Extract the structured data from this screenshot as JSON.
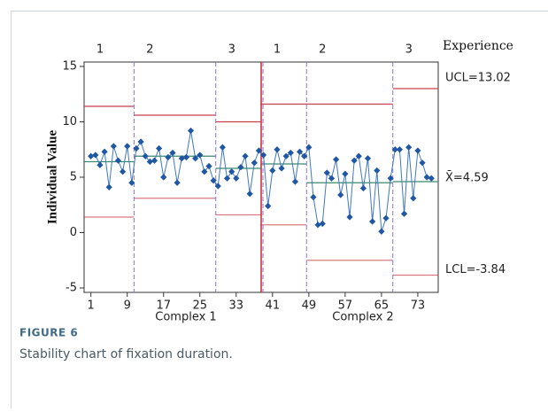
{
  "chart_data": {
    "type": "line",
    "figure_label": "FIGURE 6",
    "caption": "Stability chart of fixation duration.",
    "ylabel": "Individual Value",
    "top_label": "Experience",
    "ucl_label": "UCL=13.02",
    "center_label": "X̄=4.59",
    "lcl_label": "LCL=-3.84",
    "xlim": [
      -0.5,
      77.5
    ],
    "ylim": [
      -5.4,
      15.4
    ],
    "xticks": [
      1,
      9,
      17,
      25,
      33,
      41,
      49,
      57,
      65,
      73
    ],
    "yticks": [
      -5,
      0,
      5,
      10,
      15
    ],
    "color": "#1f57a5",
    "line_color": "#3f78c2",
    "limit_color": "#c8414a",
    "center_color": "#3c8a6e",
    "boundary_color": "#8f6fd6",
    "divider_color": "#d0313d",
    "x": [
      1,
      2,
      3,
      4,
      5,
      6,
      7,
      8,
      9,
      10,
      11,
      12,
      13,
      14,
      15,
      16,
      17,
      18,
      19,
      20,
      21,
      22,
      23,
      24,
      25,
      26,
      27,
      28,
      29,
      30,
      31,
      32,
      33,
      34,
      35,
      36,
      37,
      38,
      39,
      40,
      41,
      42,
      43,
      44,
      45,
      46,
      47,
      48,
      49,
      50,
      51,
      52,
      53,
      54,
      55,
      56,
      57,
      58,
      59,
      60,
      61,
      62,
      63,
      64,
      65,
      66,
      67,
      68,
      69,
      70,
      71,
      72,
      73,
      74,
      75,
      76
    ],
    "values": [
      6.9,
      7.0,
      6.1,
      7.3,
      4.1,
      7.8,
      6.5,
      5.5,
      7.8,
      4.5,
      7.6,
      8.2,
      6.9,
      6.4,
      6.5,
      7.6,
      5.0,
      6.8,
      7.2,
      4.5,
      6.7,
      6.8,
      9.2,
      6.7,
      7.0,
      5.5,
      6.0,
      4.7,
      4.2,
      7.7,
      4.9,
      5.5,
      4.9,
      5.9,
      6.9,
      3.5,
      6.3,
      7.4,
      7.0,
      2.4,
      5.6,
      7.5,
      5.8,
      6.9,
      7.2,
      4.6,
      7.3,
      6.9,
      7.7,
      3.2,
      0.7,
      0.8,
      5.4,
      4.9,
      6.6,
      3.4,
      5.3,
      1.4,
      6.5,
      6.9,
      4.0,
      6.7,
      1.0,
      5.6,
      0.1,
      1.3,
      4.9,
      7.5,
      7.5,
      1.7,
      7.7,
      3.1,
      7.4,
      6.3,
      5.0,
      4.9
    ],
    "boundaries": [
      10.5,
      28.5,
      38.5,
      48.5,
      67.5
    ],
    "divider": 2,
    "stages": [
      {
        "label": "1",
        "ucl": 11.4,
        "center": 6.4,
        "lcl": 1.4
      },
      {
        "label": "2",
        "ucl": 10.6,
        "center": 6.9,
        "lcl": 3.1
      },
      {
        "label": "3",
        "ucl": 10.0,
        "center": 5.8,
        "lcl": 1.6
      },
      {
        "label": "1",
        "ucl": 11.6,
        "center": 6.2,
        "lcl": 0.7
      },
      {
        "label": "2",
        "ucl": 11.6,
        "center": 4.5,
        "lcl": -2.5
      },
      {
        "label": "3",
        "ucl": 13.0,
        "center": 4.6,
        "lcl": -3.84
      }
    ],
    "groups": [
      {
        "label": "Complex 1",
        "first_stage": 0,
        "last_stage": 2
      },
      {
        "label": "Complex 2",
        "first_stage": 3,
        "last_stage": 5
      }
    ]
  }
}
